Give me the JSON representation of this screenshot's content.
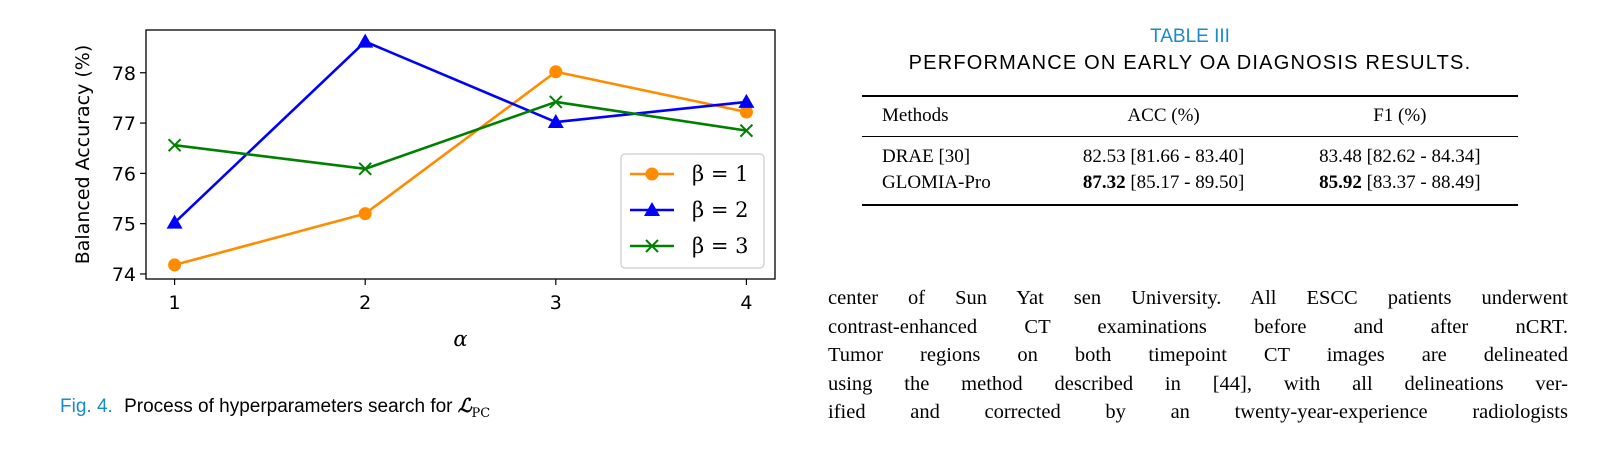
{
  "figure": {
    "caption_label": "Fig. 4.",
    "caption_text": "Process of hyperparameters search for",
    "caption_symbol": "ℒ",
    "caption_subscript": "PC"
  },
  "chart_data": {
    "type": "line",
    "x": [
      1,
      2,
      3,
      4
    ],
    "xlabel": "α",
    "ylabel": "Balanced Accuracy (%)",
    "xlim": [
      0.85,
      4.15
    ],
    "ylim": [
      73.9,
      78.85
    ],
    "yticks": [
      74,
      75,
      76,
      77,
      78
    ],
    "xticks": [
      1,
      2,
      3,
      4
    ],
    "grid": false,
    "legend_position": "right",
    "series": [
      {
        "name": "β = 1",
        "values": [
          74.18,
          75.2,
          78.02,
          77.22
        ],
        "color": "#ff8c00",
        "marker": "circle"
      },
      {
        "name": "β = 2",
        "values": [
          75.02,
          78.62,
          77.02,
          77.42
        ],
        "color": "#0000ff",
        "marker": "triangle"
      },
      {
        "name": "β = 3",
        "values": [
          76.56,
          76.09,
          77.42,
          76.85
        ],
        "color": "#008000",
        "marker": "x"
      }
    ]
  },
  "table": {
    "label": "TABLE III",
    "caption": "PERFORMANCE ON EARLY OA DIAGNOSIS RESULTS.",
    "headers": [
      "Methods",
      "ACC (%)",
      "F1 (%)"
    ],
    "rows": [
      {
        "method": "DRAE [30]",
        "acc_main": "82.53",
        "acc_ci": " [81.66 - 83.40]",
        "acc_bold": false,
        "f1_main": "83.48",
        "f1_ci": " [82.62 - 84.34]",
        "f1_bold": false
      },
      {
        "method": "GLOMIA-Pro",
        "acc_main": "87.32",
        "acc_ci": " [85.17 - 89.50]",
        "acc_bold": true,
        "f1_main": "85.92",
        "f1_ci": " [83.37 - 88.49]",
        "f1_bold": true
      }
    ]
  },
  "body_text": {
    "lines": [
      "center of Sun Yat sen University. All ESCC patients underwent",
      "contrast-enhanced CT examinations before and after nCRT.",
      "Tumor regions on both timepoint CT images are delineated",
      "using the method described in [44], with all delineations ver-",
      "ified and corrected by an twenty-year-experience radiologists"
    ]
  }
}
